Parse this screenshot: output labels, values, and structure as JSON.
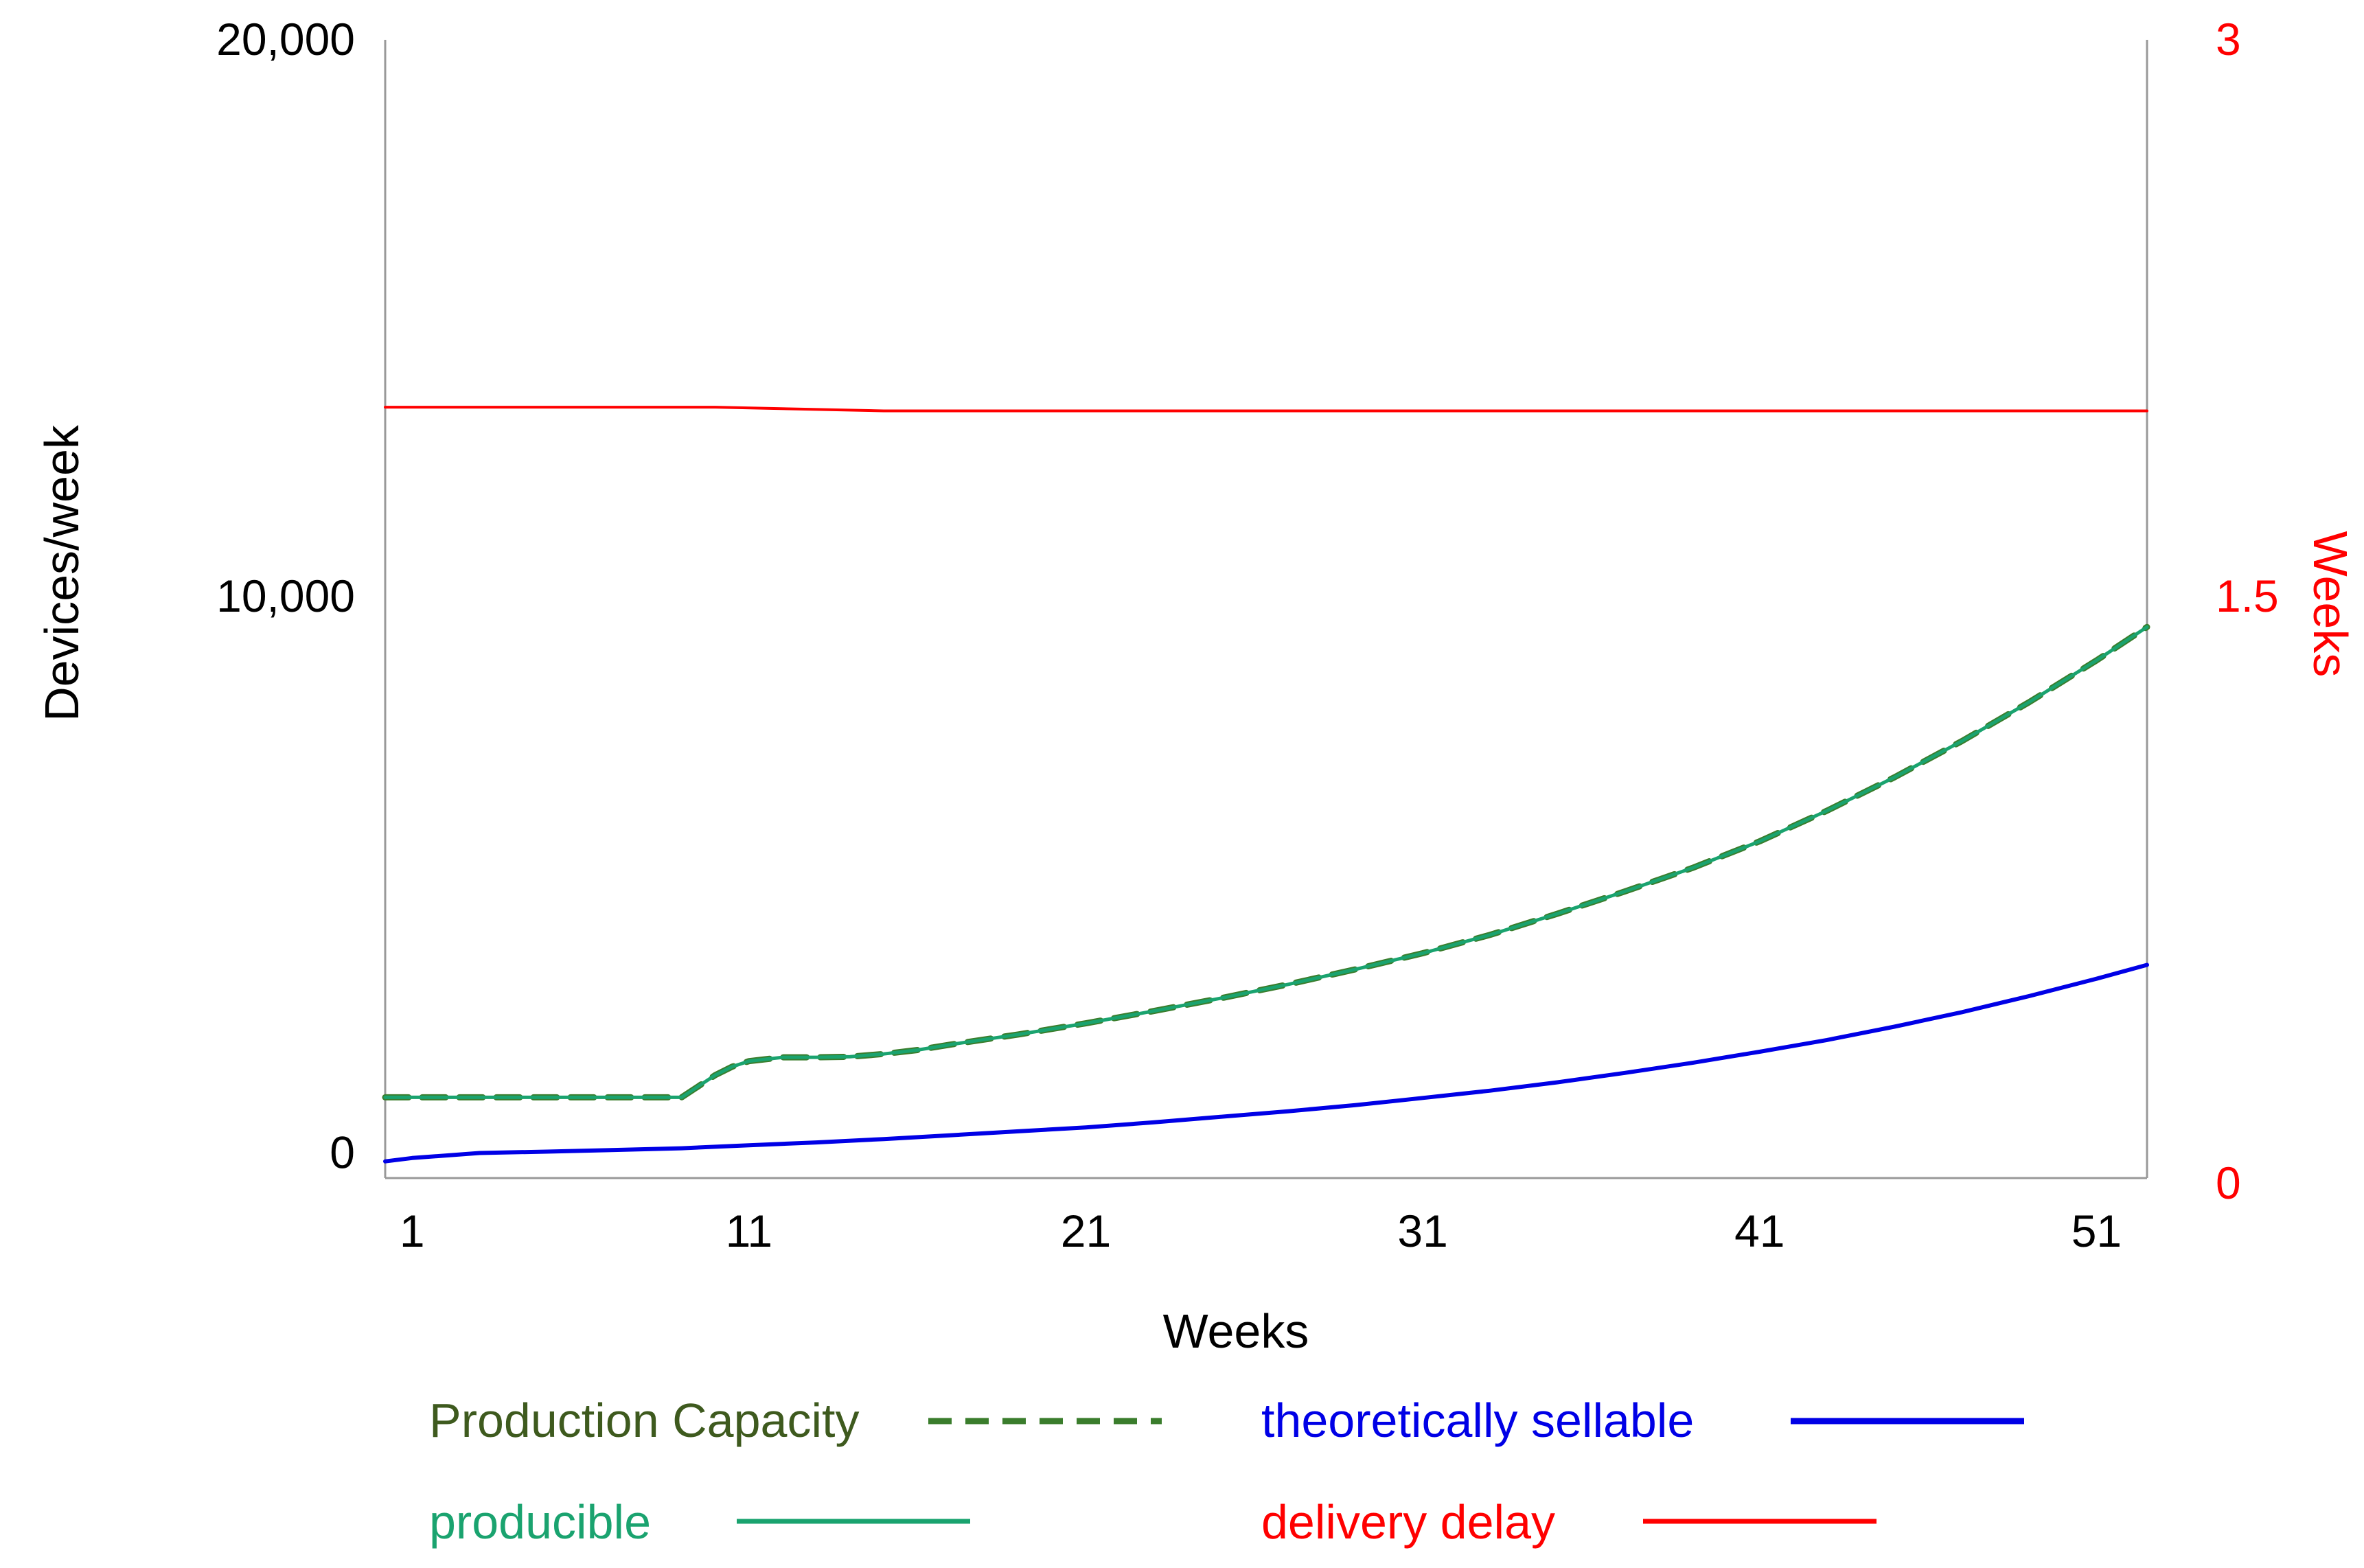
{
  "chart_data": {
    "type": "line",
    "title": "",
    "xlabel": "Weeks",
    "ylabel": "Devices/week",
    "y2label": "Weeks",
    "xlim": [
      0.2,
      52.5
    ],
    "ylim": [
      -450,
      20000
    ],
    "y2lim": [
      -0.0675,
      3
    ],
    "x_ticks": [
      1,
      11,
      21,
      31,
      41,
      51
    ],
    "x_tick_labels": [
      "1",
      "11",
      "21",
      "31",
      "41",
      "51"
    ],
    "y_ticks": [
      0,
      10000,
      20000
    ],
    "y_tick_labels": [
      "0",
      "10,000",
      "20,000"
    ],
    "y2_ticks": [
      0,
      1.5,
      3
    ],
    "y2_tick_labels": [
      "0",
      "1.5",
      "3"
    ],
    "grid": false,
    "legend_position": "bottom",
    "colors": {
      "production_capacity": "#3a7d2c",
      "production_capacity_label": "#3e5a1e",
      "producible": "#1aa36f",
      "theoretically_sellable": "#0000e6",
      "delivery_delay": "#ff0000",
      "axis": "#999999",
      "y2_text": "#ff0000"
    },
    "series": [
      {
        "name": "Production Capacity",
        "axis": "left",
        "style": "dashed",
        "x": [
          0.2,
          1,
          3,
          5,
          7,
          9,
          9.5,
          10,
          10.5,
          11,
          12,
          13,
          14,
          15,
          16,
          17,
          19,
          21,
          23,
          25,
          27,
          29,
          31,
          33,
          35,
          37,
          39,
          41,
          43,
          45,
          47,
          49,
          51,
          52.5
        ],
        "values": [
          1000,
          1000,
          1000,
          1000,
          1000,
          1000,
          1200,
          1400,
          1550,
          1650,
          1720,
          1720,
          1730,
          1780,
          1850,
          1950,
          2130,
          2330,
          2550,
          2780,
          3030,
          3300,
          3590,
          3920,
          4300,
          4700,
          5120,
          5600,
          6150,
          6750,
          7400,
          8100,
          8850,
          9450
        ]
      },
      {
        "name": "producible",
        "axis": "left",
        "style": "solid",
        "x": [
          0.2,
          1,
          3,
          5,
          7,
          9,
          9.5,
          10,
          10.5,
          11,
          12,
          13,
          14,
          15,
          16,
          17,
          19,
          21,
          23,
          25,
          27,
          29,
          31,
          33,
          35,
          37,
          39,
          41,
          43,
          45,
          47,
          49,
          51,
          52.5
        ],
        "values": [
          1000,
          1000,
          1000,
          1000,
          1000,
          1000,
          1200,
          1400,
          1550,
          1650,
          1720,
          1720,
          1730,
          1780,
          1850,
          1950,
          2130,
          2330,
          2550,
          2780,
          3030,
          3300,
          3590,
          3920,
          4300,
          4700,
          5120,
          5600,
          6150,
          6750,
          7400,
          8100,
          8850,
          9450
        ]
      },
      {
        "name": "theoretically sellable",
        "axis": "left",
        "style": "solid",
        "x": [
          0.2,
          1,
          3,
          5,
          7,
          9,
          11,
          13,
          15,
          17,
          19,
          21,
          23,
          25,
          27,
          29,
          31,
          33,
          35,
          37,
          39,
          41,
          43,
          45,
          47,
          49,
          51,
          52.5
        ],
        "values": [
          -150,
          -90,
          0,
          25,
          55,
          85,
          140,
          190,
          250,
          320,
          390,
          460,
          550,
          650,
          750,
          860,
          990,
          1120,
          1270,
          1440,
          1620,
          1820,
          2030,
          2270,
          2530,
          2820,
          3130,
          3380
        ]
      },
      {
        "name": "delivery delay",
        "axis": "right",
        "style": "solid",
        "x": [
          0.2,
          5,
          10,
          15,
          20,
          25,
          30,
          35,
          40,
          45,
          50,
          52.5
        ],
        "values": [
          2.01,
          2.01,
          2.01,
          2.0,
          2.0,
          2.0,
          2.0,
          2.0,
          2.0,
          2.0,
          2.0,
          2.0
        ]
      }
    ],
    "legend": {
      "production_capacity": "Production Capacity",
      "theoretically_sellable": "theoretically sellable",
      "producible": "producible",
      "delivery_delay": "delivery delay"
    }
  }
}
